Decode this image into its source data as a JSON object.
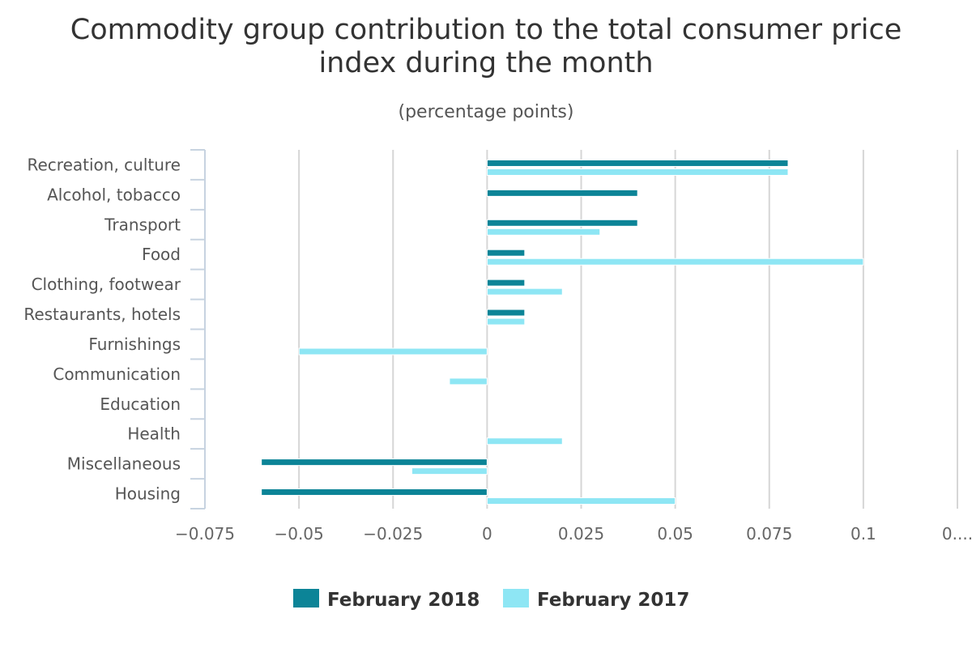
{
  "chart_data": {
    "type": "bar",
    "orientation": "horizontal",
    "title_line1": "Commodity group contribution to the total consumer price",
    "title_line2": "index during the month",
    "subtitle": "(percentage points)",
    "categories": [
      "Recreation, culture",
      "Alcohol, tobacco",
      "Transport",
      "Food",
      "Clothing, footwear",
      "Restaurants, hotels",
      "Furnishings",
      "Communication",
      "Education",
      "Health",
      "Miscellaneous",
      "Housing"
    ],
    "series": [
      {
        "name": "February 2018",
        "color": "#0c8497",
        "values": [
          0.08,
          0.04,
          0.04,
          0.01,
          0.01,
          0.01,
          0,
          0,
          0,
          0,
          -0.06,
          -0.06
        ]
      },
      {
        "name": "February 2017",
        "color": "#8ee6f4",
        "values": [
          0.08,
          0,
          0.03,
          0.1,
          0.02,
          0.01,
          -0.05,
          -0.01,
          0,
          0.02,
          -0.02,
          0.05
        ]
      }
    ],
    "xlim": [
      -0.075,
      0.125
    ],
    "x_ticks": [
      -0.075,
      -0.05,
      -0.025,
      0,
      0.025,
      0.05,
      0.075,
      0.1,
      0.125
    ],
    "x_tick_labels": [
      "−0.075",
      "−0.05",
      "−0.025",
      "0",
      "0.025",
      "0.05",
      "0.075",
      "0.1",
      "0...."
    ],
    "grid": true,
    "legend_position": "bottom-center"
  }
}
